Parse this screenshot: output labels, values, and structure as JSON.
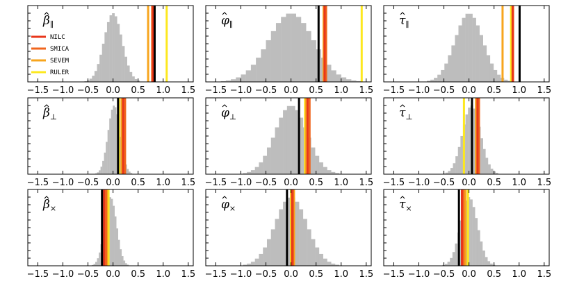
{
  "chart_data": {
    "type": "histogram",
    "xlim": [
      -1.7,
      1.6
    ],
    "xticks": [
      "−1.5",
      "−1.0",
      "−0.5",
      "0.0",
      "0.5",
      "1.0",
      "1.5"
    ],
    "xtick_values": [
      -1.5,
      -1.0,
      -0.5,
      0.0,
      0.5,
      1.0,
      1.5
    ],
    "histogram_color": "#bdbdbd",
    "legend": [
      {
        "name": "NILC",
        "color": "#e8361b"
      },
      {
        "name": "SMICA",
        "color": "#f0661e"
      },
      {
        "name": "SEVEM",
        "color": "#f7a51d"
      },
      {
        "name": "RULER",
        "color": "#fde81f"
      }
    ],
    "reference_line_color": "#000000",
    "panels": [
      {
        "id": "beta-par",
        "title_base": "β",
        "title_sub": "∥",
        "hist": {
          "mu": 0.0,
          "sigma": 0.18,
          "bw": 0.05
        },
        "lines": {
          "NILC": 0.8,
          "SMICA": 0.78,
          "SEVEM": 0.7,
          "RULER": 1.07,
          "reference": 0.83
        }
      },
      {
        "id": "phi-par",
        "title_base": "φ",
        "title_sub": "∥",
        "hist": {
          "mu": 0.0,
          "sigma": 0.45,
          "bw": 0.1
        },
        "lines": {
          "NILC": 0.67,
          "SMICA": 0.7,
          "SEVEM": 0.65,
          "RULER": 1.41,
          "reference": 0.55
        }
      },
      {
        "id": "tau-par",
        "title_base": "τ",
        "title_sub": "∥",
        "hist": {
          "mu": 0.0,
          "sigma": 0.28,
          "bw": 0.07
        },
        "lines": {
          "NILC": 0.87,
          "SMICA": 0.88,
          "SEVEM": 0.67,
          "RULER": 0.84,
          "reference": 1.01
        }
      },
      {
        "id": "beta-perp",
        "title_base": "β",
        "title_sub": "⊥",
        "hist": {
          "mu": 0.02,
          "sigma": 0.12,
          "bw": 0.035
        },
        "lines": {
          "NILC": 0.2,
          "SMICA": 0.24,
          "SEVEM": 0.17,
          "RULER": 0.12,
          "reference": 0.1
        }
      },
      {
        "id": "phi-perp",
        "title_base": "φ",
        "title_sub": "⊥",
        "hist": {
          "mu": 0.0,
          "sigma": 0.32,
          "bw": 0.08
        },
        "lines": {
          "NILC": 0.33,
          "SMICA": 0.37,
          "SEVEM": 0.3,
          "RULER": 0.28,
          "reference": 0.16
        }
      },
      {
        "id": "tau-perp",
        "title_base": "τ",
        "title_sub": "⊥",
        "hist": {
          "mu": 0.05,
          "sigma": 0.18,
          "bw": 0.05
        },
        "lines": {
          "NILC": 0.17,
          "SMICA": 0.2,
          "SEVEM": 0.14,
          "RULER": -0.1,
          "reference": 0.06
        }
      },
      {
        "id": "beta-cross",
        "title_base": "β",
        "title_sub": "×",
        "hist": {
          "mu": -0.05,
          "sigma": 0.12,
          "bw": 0.035
        },
        "lines": {
          "NILC": -0.18,
          "SMICA": -0.14,
          "SEVEM": -0.12,
          "RULER": -0.09,
          "reference": -0.22
        }
      },
      {
        "id": "phi-cross",
        "title_base": "φ",
        "title_sub": "×",
        "hist": {
          "mu": 0.0,
          "sigma": 0.32,
          "bw": 0.08
        },
        "lines": {
          "NILC": 0.02,
          "SMICA": 0.04,
          "SEVEM": 0.06,
          "RULER": 0.0,
          "reference": -0.08
        }
      },
      {
        "id": "tau-cross",
        "title_base": "τ",
        "title_sub": "×",
        "hist": {
          "mu": 0.0,
          "sigma": 0.17,
          "bw": 0.05
        },
        "lines": {
          "NILC": -0.14,
          "SMICA": -0.11,
          "SEVEM": -0.07,
          "RULER": -0.02,
          "reference": -0.2
        }
      }
    ]
  }
}
